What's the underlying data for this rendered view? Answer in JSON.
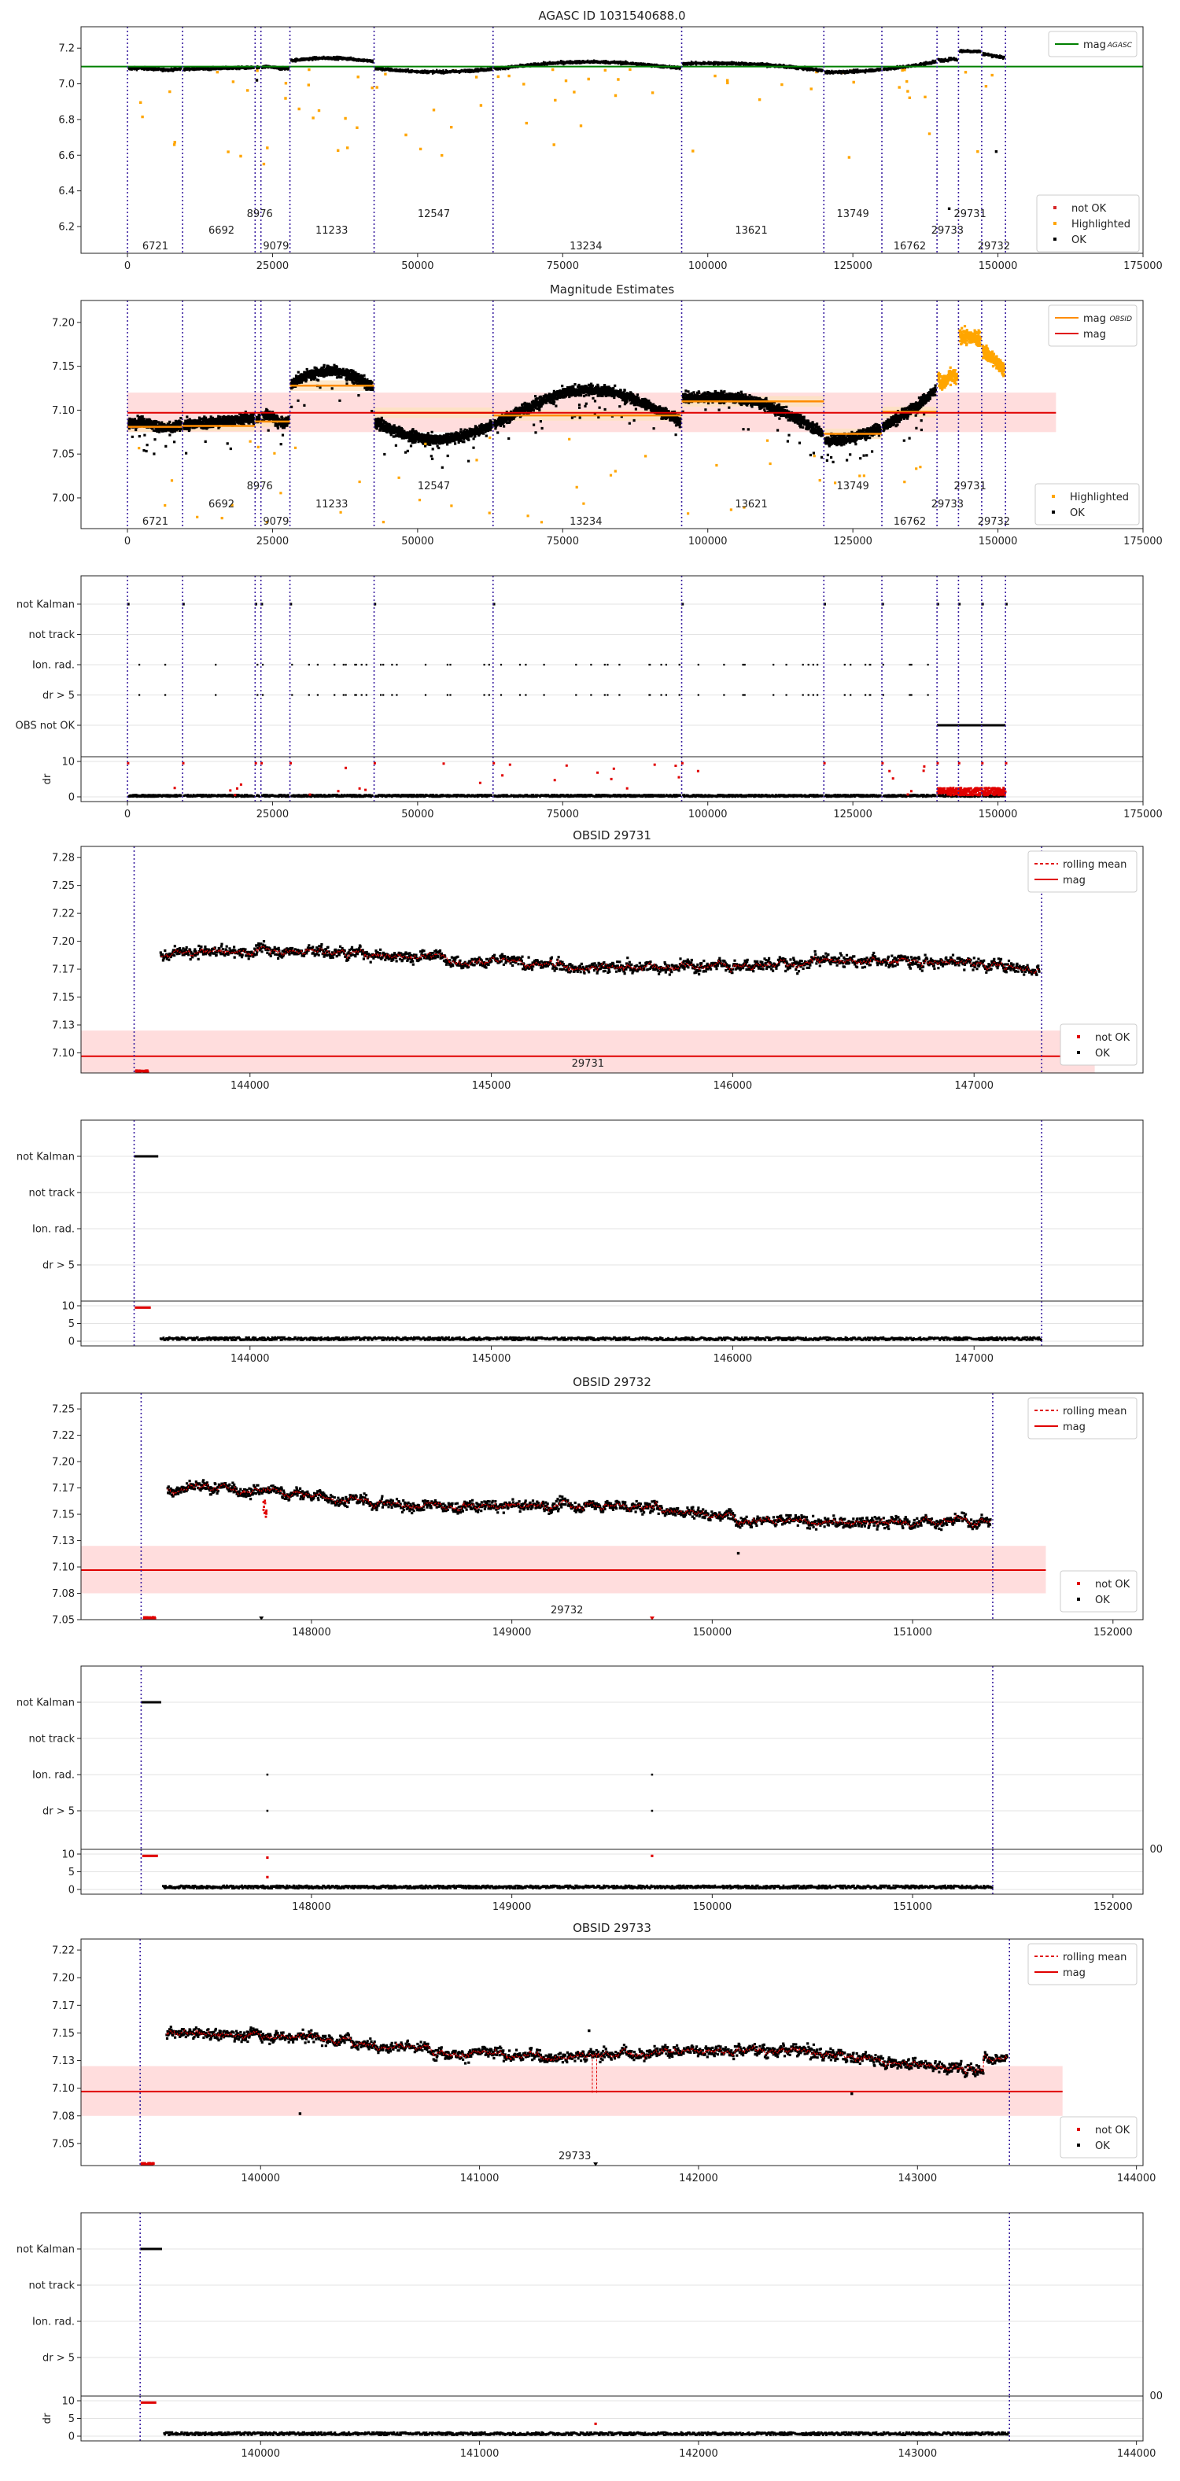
{
  "chart_data": [
    {
      "type": "scatter",
      "id": "overview",
      "title": "AGASC ID 1031540688.0",
      "xlim": [
        -8000,
        175000
      ],
      "ylim": [
        6.05,
        7.32
      ],
      "xticks": [
        0,
        25000,
        50000,
        75000,
        100000,
        125000,
        150000,
        175000
      ],
      "yticks": [
        6.2,
        6.4,
        6.6,
        6.8,
        7.0,
        7.2
      ],
      "mag_line": 7.097,
      "mag_line_label": "mag",
      "mag_line_sublabel": "AGASC",
      "obs_boundaries": [
        0,
        9500,
        22000,
        23000,
        28000,
        42500,
        63000,
        95500,
        120000,
        130000,
        139500,
        143200,
        147200,
        151300
      ],
      "obsid_labels": [
        {
          "text": "6721",
          "x": 4800,
          "row": 2
        },
        {
          "text": "6692",
          "x": 16200,
          "row": 1
        },
        {
          "text": "8976",
          "x": 22800,
          "row": 0
        },
        {
          "text": "9079",
          "x": 25600,
          "row": 2
        },
        {
          "text": "11233",
          "x": 35200,
          "row": 1
        },
        {
          "text": "12547",
          "x": 52800,
          "row": 0
        },
        {
          "text": "13234",
          "x": 79000,
          "row": 2
        },
        {
          "text": "13621",
          "x": 107500,
          "row": 1
        },
        {
          "text": "13749",
          "x": 125000,
          "row": 0
        },
        {
          "text": "16762",
          "x": 134800,
          "row": 2
        },
        {
          "text": "29733",
          "x": 141300,
          "row": 1
        },
        {
          "text": "29731",
          "x": 145200,
          "row": 0
        },
        {
          "text": "29732",
          "x": 149300,
          "row": 2
        }
      ],
      "legend_top": [
        "mag"
      ],
      "legend_bottom": [
        "not OK",
        "Highlighted",
        "OK"
      ],
      "colors": {
        "ok": "#000000",
        "highlighted": "#ffa500",
        "not_ok": "#d62728",
        "mag": "#008000",
        "boundary": "#3a1fa0"
      }
    },
    {
      "type": "scatter",
      "id": "mag_estimates",
      "title": "Magnitude Estimates",
      "xlim": [
        -8000,
        175000
      ],
      "ylim": [
        6.965,
        7.225
      ],
      "xticks": [
        0,
        25000,
        50000,
        75000,
        100000,
        125000,
        150000,
        175000
      ],
      "yticks": [
        7.0,
        7.05,
        7.1,
        7.15,
        7.2
      ],
      "mag_line": 7.097,
      "mag_band": [
        7.075,
        7.12
      ],
      "obs_mags": [
        {
          "x0": 0,
          "x1": 9500,
          "mag": 7.081
        },
        {
          "x0": 9500,
          "x1": 22000,
          "mag": 7.082
        },
        {
          "x0": 22000,
          "x1": 28000,
          "mag": 7.087
        },
        {
          "x0": 28000,
          "x1": 42500,
          "mag": 7.128
        },
        {
          "x0": 42500,
          "x1": 63000,
          "mag": 7.097
        },
        {
          "x0": 63000,
          "x1": 95500,
          "mag": 7.094
        },
        {
          "x0": 95500,
          "x1": 120000,
          "mag": 7.11
        },
        {
          "x0": 120000,
          "x1": 130000,
          "mag": 7.073
        },
        {
          "x0": 130000,
          "x1": 139500,
          "mag": 7.098
        }
      ],
      "legend_top": [
        "mag",
        "mag"
      ],
      "legend_top_sublabel": "OBSID",
      "legend_bottom": [
        "Highlighted",
        "OK"
      ]
    },
    {
      "type": "scatter",
      "id": "flags_overview",
      "categories": [
        "not Kalman",
        "not track",
        "Ion. rad.",
        "dr > 5",
        "OBS not OK"
      ],
      "dr_ylabel": "dr",
      "dr_yticks": [
        0,
        10
      ],
      "xticks": [
        0,
        25000,
        50000,
        75000,
        100000,
        125000,
        150000,
        175000
      ]
    },
    {
      "type": "scatter",
      "id": "obs29731",
      "title": "OBSID 29731",
      "xlim": [
        143300,
        147700
      ],
      "ylim": [
        7.082,
        7.285
      ],
      "xticks": [
        144000,
        145000,
        146000,
        147000
      ],
      "yticks": [
        7.1,
        7.125,
        7.15,
        7.175,
        7.2,
        7.225,
        7.25,
        7.275
      ],
      "obs_start": 143520,
      "obs_end": 147280,
      "obsid_label": "29731",
      "mean_mag": 7.185,
      "legend_top": [
        "rolling mean",
        "mag"
      ],
      "legend_bottom": [
        "not OK",
        "OK"
      ]
    },
    {
      "type": "scatter",
      "id": "flags29731",
      "categories": [
        "not Kalman",
        "not track",
        "Ion. rad.",
        "dr > 5"
      ],
      "dr_yticks": [
        0,
        5,
        10
      ],
      "xticks": [
        144000,
        145000,
        146000,
        147000
      ]
    },
    {
      "type": "scatter",
      "id": "obs29732",
      "title": "OBSID 29732",
      "xlim": [
        146850,
        152150
      ],
      "ylim": [
        7.05,
        7.265
      ],
      "xticks": [
        148000,
        149000,
        150000,
        151000,
        152000
      ],
      "yticks": [
        7.05,
        7.075,
        7.1,
        7.125,
        7.15,
        7.175,
        7.2,
        7.225,
        7.25
      ],
      "obs_start": 147150,
      "obs_end": 151400,
      "obsid_label": "29732",
      "mean_mag": 7.16,
      "legend_top": [
        "rolling mean",
        "mag"
      ],
      "legend_bottom": [
        "not OK",
        "OK"
      ]
    },
    {
      "type": "scatter",
      "id": "flags29732",
      "categories": [
        "not Kalman",
        "not track",
        "Ion. rad.",
        "dr > 5"
      ],
      "dr_yticks": [
        0,
        5,
        10
      ],
      "xticks": [
        148000,
        149000,
        150000,
        151000,
        152000
      ],
      "stray_tick": "00"
    },
    {
      "type": "scatter",
      "id": "obs29733",
      "title": "OBSID 29733",
      "xlim": [
        139180,
        144030
      ],
      "ylim": [
        7.03,
        7.235
      ],
      "xticks": [
        140000,
        141000,
        142000,
        143000,
        144000
      ],
      "yticks": [
        7.05,
        7.075,
        7.1,
        7.125,
        7.15,
        7.175,
        7.2,
        7.225
      ],
      "obs_start": 139450,
      "obs_end": 143420,
      "obsid_label": "29733",
      "mean_mag": 7.135,
      "legend_top": [
        "rolling mean",
        "mag"
      ],
      "legend_bottom": [
        "not OK",
        "OK"
      ]
    },
    {
      "type": "scatter",
      "id": "flags29733",
      "categories": [
        "not Kalman",
        "not track",
        "Ion. rad.",
        "dr > 5"
      ],
      "dr_ylabel": "dr",
      "dr_yticks": [
        0,
        5,
        10
      ],
      "xticks": [
        140000,
        141000,
        142000,
        143000,
        144000
      ],
      "stray_tick": "00"
    }
  ]
}
